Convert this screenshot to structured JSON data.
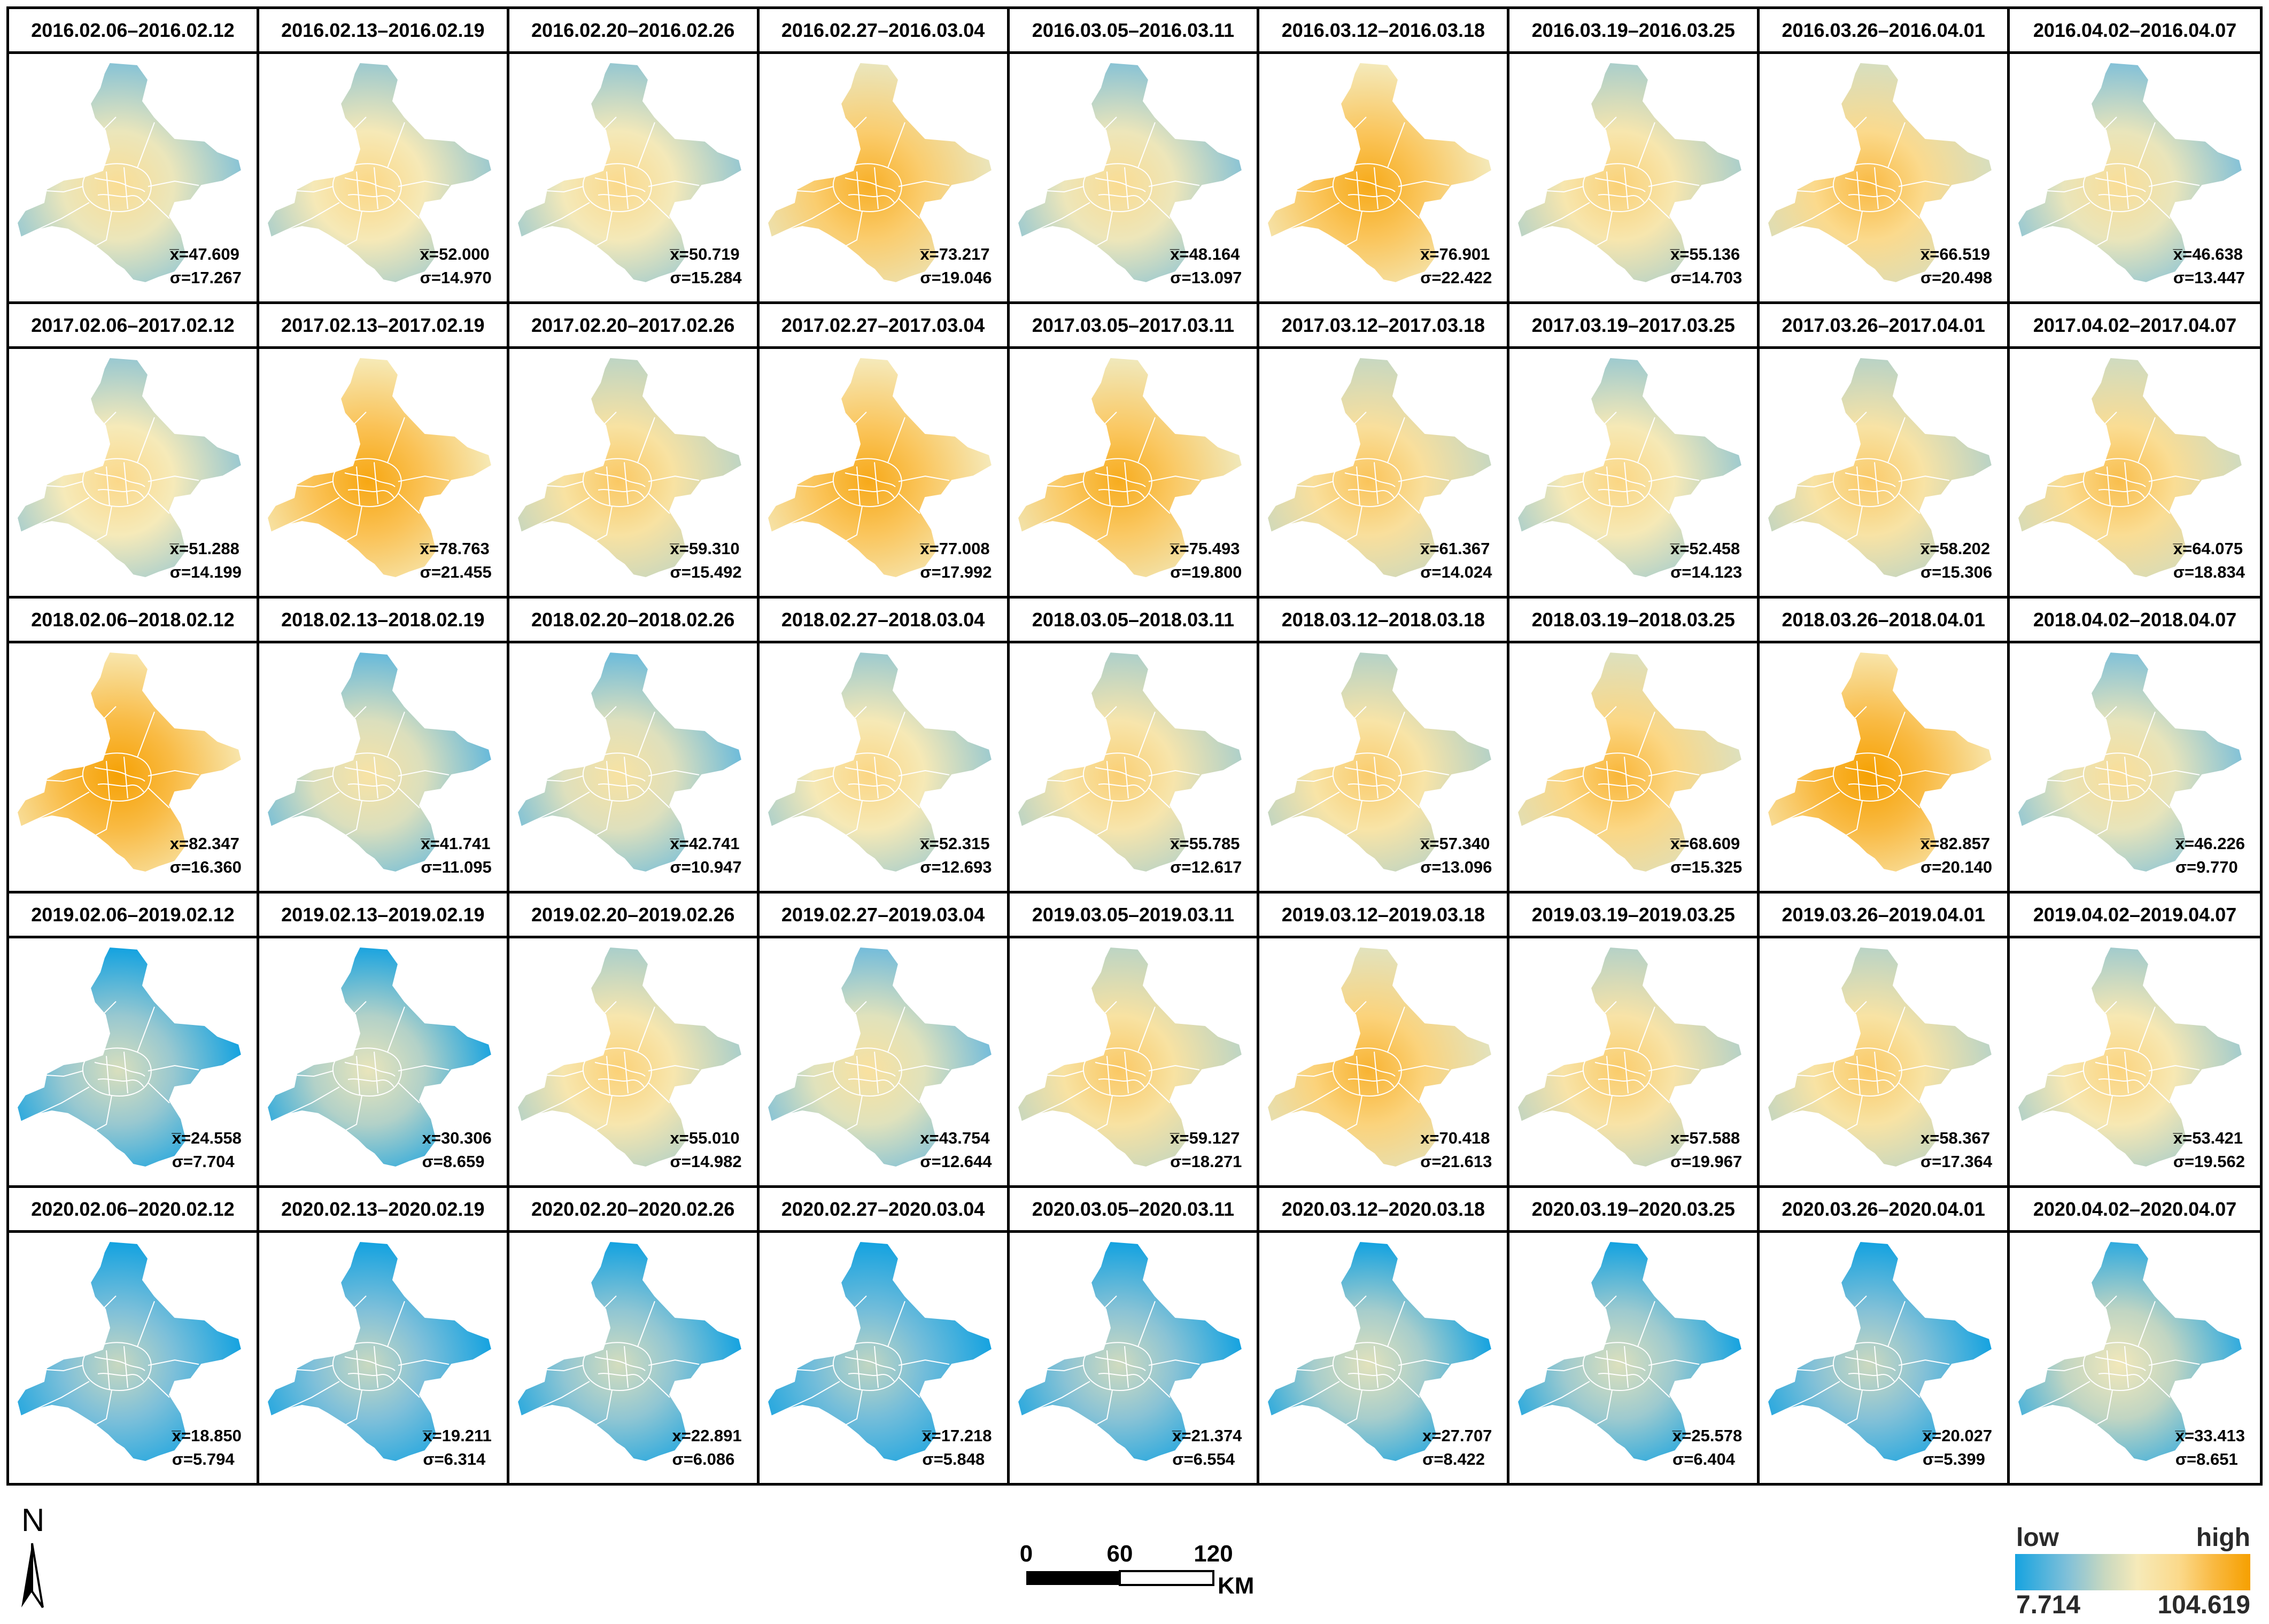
{
  "maps": [
    [
      {
        "period": "2016.02.06–2016.02.12",
        "mean": "x̅=47.609",
        "std": "σ=17.267",
        "level": 47.609
      },
      {
        "period": "2016.02.13–2016.02.19",
        "mean": "x̅=52.000",
        "std": "σ=14.970",
        "level": 52.0
      },
      {
        "period": "2016.02.20–2016.02.26",
        "mean": "x̅=50.719",
        "std": "σ=15.284",
        "level": 50.719
      },
      {
        "period": "2016.02.27–2016.03.04",
        "mean": "x̅=73.217",
        "std": "σ=19.046",
        "level": 73.217
      },
      {
        "period": "2016.03.05–2016.03.11",
        "mean": "x̅=48.164",
        "std": "σ=13.097",
        "level": 48.164
      },
      {
        "period": "2016.03.12–2016.03.18",
        "mean": "x̅=76.901",
        "std": "σ=22.422",
        "level": 76.901
      },
      {
        "period": "2016.03.19–2016.03.25",
        "mean": "x̅=55.136",
        "std": "σ=14.703",
        "level": 55.136
      },
      {
        "period": "2016.03.26–2016.04.01",
        "mean": "x̅=66.519",
        "std": "σ=20.498",
        "level": 66.519
      },
      {
        "period": "2016.04.02–2016.04.07",
        "mean": "x̅=46.638",
        "std": "σ=13.447",
        "level": 46.638
      }
    ],
    [
      {
        "period": "2017.02.06–2017.02.12",
        "mean": "x̅=51.288",
        "std": "σ=14.199",
        "level": 51.288
      },
      {
        "period": "2017.02.13–2017.02.19",
        "mean": "x̅=78.763",
        "std": "σ=21.455",
        "level": 78.763
      },
      {
        "period": "2017.02.20–2017.02.26",
        "mean": "x̅=59.310",
        "std": "σ=15.492",
        "level": 59.31
      },
      {
        "period": "2017.02.27–2017.03.04",
        "mean": "x̅=77.008",
        "std": "σ=17.992",
        "level": 77.008
      },
      {
        "period": "2017.03.05–2017.03.11",
        "mean": "x̅=75.493",
        "std": "σ=19.800",
        "level": 75.493
      },
      {
        "period": "2017.03.12–2017.03.18",
        "mean": "x̅=61.367",
        "std": "σ=14.024",
        "level": 61.367
      },
      {
        "period": "2017.03.19–2017.03.25",
        "mean": "x̅=52.458",
        "std": "σ=14.123",
        "level": 52.458
      },
      {
        "period": "2017.03.26–2017.04.01",
        "mean": "x̅=58.202",
        "std": "σ=15.306",
        "level": 58.202
      },
      {
        "period": "2017.04.02–2017.04.07",
        "mean": "x̅=64.075",
        "std": "σ=18.834",
        "level": 64.075
      }
    ],
    [
      {
        "period": "2018.02.06–2018.02.12",
        "mean": "x=82.347",
        "std": "σ=16.360",
        "level": 82.347
      },
      {
        "period": "2018.02.13–2018.02.19",
        "mean": "x̅=41.741",
        "std": "σ=11.095",
        "level": 41.741
      },
      {
        "period": "2018.02.20–2018.02.26",
        "mean": "x̅=42.741",
        "std": "σ=10.947",
        "level": 42.741
      },
      {
        "period": "2018.02.27–2018.03.04",
        "mean": "x̅=52.315",
        "std": "σ=12.693",
        "level": 52.315
      },
      {
        "period": "2018.03.05–2018.03.11",
        "mean": "x̅=55.785",
        "std": "σ=12.617",
        "level": 55.785
      },
      {
        "period": "2018.03.12–2018.03.18",
        "mean": "x̅=57.340",
        "std": "σ=13.096",
        "level": 57.34
      },
      {
        "period": "2018.03.19–2018.03.25",
        "mean": "x̅=68.609",
        "std": "σ=15.325",
        "level": 68.609
      },
      {
        "period": "2018.03.26–2018.04.01",
        "mean": "x̅=82.857",
        "std": "σ=20.140",
        "level": 82.857
      },
      {
        "period": "2018.04.02–2018.04.07",
        "mean": "x̅=46.226",
        "std": "σ=9.770",
        "level": 46.226
      }
    ],
    [
      {
        "period": "2019.02.06–2019.02.12",
        "mean": "x̅=24.558",
        "std": "σ=7.704",
        "level": 24.558
      },
      {
        "period": "2019.02.13–2019.02.19",
        "mean": "x=30.306",
        "std": "σ=8.659",
        "level": 30.306
      },
      {
        "period": "2019.02.20–2019.02.26",
        "mean": "x=55.010",
        "std": "σ=14.982",
        "level": 55.01
      },
      {
        "period": "2019.02.27–2019.03.04",
        "mean": "x=43.754",
        "std": "σ=12.644",
        "level": 43.754
      },
      {
        "period": "2019.03.05–2019.03.11",
        "mean": "x̅=59.127",
        "std": "σ=18.271",
        "level": 59.127
      },
      {
        "period": "2019.03.12–2019.03.18",
        "mean": "x=70.418",
        "std": "σ=21.613",
        "level": 70.418
      },
      {
        "period": "2019.03.19–2019.03.25",
        "mean": "x=57.588",
        "std": "σ=19.967",
        "level": 57.588
      },
      {
        "period": "2019.03.26–2019.04.01",
        "mean": "x=58.367",
        "std": "σ=17.364",
        "level": 58.367
      },
      {
        "period": "2019.04.02–2019.04.07",
        "mean": "x̅=53.421",
        "std": "σ=19.562",
        "level": 53.421
      }
    ],
    [
      {
        "period": "2020.02.06–2020.02.12",
        "mean": "x̅=18.850",
        "std": "σ=5.794",
        "level": 18.85
      },
      {
        "period": "2020.02.13–2020.02.19",
        "mean": "x̅=19.211",
        "std": "σ=6.314",
        "level": 19.211
      },
      {
        "period": "2020.02.20–2020.02.26",
        "mean": "x=22.891",
        "std": "σ=6.086",
        "level": 22.891
      },
      {
        "period": "2020.02.27–2020.03.04",
        "mean": "x̅=17.218",
        "std": "σ=5.848",
        "level": 17.218
      },
      {
        "period": "2020.03.05–2020.03.11",
        "mean": "x̅=21.374",
        "std": "σ=6.554",
        "level": 21.374
      },
      {
        "period": "2020.03.12–2020.03.18",
        "mean": "x=27.707",
        "std": "σ=8.422",
        "level": 27.707
      },
      {
        "period": "2020.03.19–2020.03.25",
        "mean": "x̅=25.578",
        "std": "σ=6.404",
        "level": 25.578
      },
      {
        "period": "2020.03.26–2020.04.01",
        "mean": "x̅=20.027",
        "std": "σ=5.399",
        "level": 20.027
      },
      {
        "period": "2020.04.02–2020.04.07",
        "mean": "x̅=33.413",
        "std": "σ=8.651",
        "level": 33.413
      }
    ]
  ],
  "north": {
    "label": "N"
  },
  "scale": {
    "tick0": "0",
    "tick1": "60",
    "tick2": "120",
    "unit": "KM"
  },
  "legend": {
    "low_label": "low",
    "high_label": "high",
    "min_value": "7.714",
    "max_value": "104.619",
    "min": 7.714,
    "max": 104.619,
    "colors": [
      "#16a3e0",
      "#7fc0d9",
      "#c8d8c0",
      "#f6eab9",
      "#fbd98a",
      "#f9b83f",
      "#f6a000"
    ]
  }
}
